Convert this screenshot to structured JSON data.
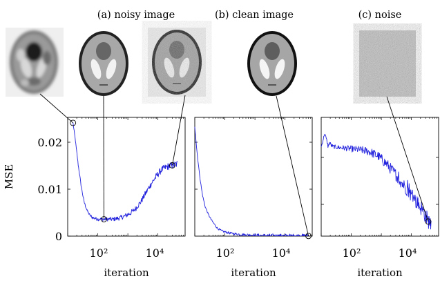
{
  "panel_titles": [
    "(a) noisy image",
    "(b) clean image",
    "(c) noise"
  ],
  "thumbnail_icons": [
    "blurry-phantom-icon",
    "smooth-phantom-icon",
    "noisy-phantom-icon",
    "clean-phantom-icon",
    "noise-pattern-icon"
  ],
  "colors": {
    "series": "#1f1fdd",
    "axis": "#000000",
    "marker": "#000000"
  },
  "chart_data": [
    {
      "type": "line",
      "title": "(a) noisy image",
      "xlabel": "iteration",
      "ylabel": "MSE",
      "xscale": "log",
      "xlim": [
        10,
        80000
      ],
      "ylim": [
        0,
        0.026
      ],
      "xticks": [
        {
          "value": 100,
          "label": "10²"
        },
        {
          "value": 10000,
          "label": "10⁴"
        }
      ],
      "yticks": [
        {
          "value": 0,
          "label": "0"
        },
        {
          "value": 0.01,
          "label": "0.01"
        },
        {
          "value": 0.02,
          "label": "0.02"
        }
      ],
      "series": [
        {
          "x": [
            15,
            18,
            22,
            28,
            35,
            45,
            55,
            70,
            90,
            110,
            140,
            180,
            230,
            300,
            400,
            550,
            800,
            1200,
            1800,
            2700,
            4000,
            6000,
            9000,
            13000,
            20000,
            30000,
            45000
          ],
          "y": [
            0.0248,
            0.021,
            0.016,
            0.011,
            0.0075,
            0.0055,
            0.0045,
            0.004,
            0.0038,
            0.0037,
            0.0037,
            0.0037,
            0.0037,
            0.0037,
            0.0038,
            0.004,
            0.0044,
            0.005,
            0.006,
            0.0075,
            0.0095,
            0.0115,
            0.0132,
            0.0145,
            0.0152,
            0.0155,
            0.0158
          ],
          "noise": 0.0006
        }
      ],
      "markers": [
        {
          "x": 15,
          "y": 0.0248
        },
        {
          "x": 160,
          "y": 0.0037
        },
        {
          "x": 30000,
          "y": 0.0155
        }
      ]
    },
    {
      "type": "line",
      "xlabel": "iteration",
      "xscale": "log",
      "xlim": [
        10,
        80000
      ],
      "ylim": [
        0,
        0.026
      ],
      "xticks": [
        {
          "value": 100,
          "label": "10²"
        },
        {
          "value": 10000,
          "label": "10⁴"
        }
      ],
      "series": [
        {
          "x": [
            10,
            12,
            15,
            18,
            22,
            28,
            35,
            45,
            55,
            70,
            90,
            120,
            160,
            220,
            300,
            450,
            700,
            1100,
            2000,
            4000,
            8000,
            20000,
            60000
          ],
          "y": [
            0.024,
            0.018,
            0.0125,
            0.009,
            0.0065,
            0.0048,
            0.0036,
            0.0026,
            0.0018,
            0.0013,
            0.001,
            0.0008,
            0.0006,
            0.0005,
            0.0004,
            0.0003,
            0.00025,
            0.0002,
            0.00015,
            0.0001,
            8e-05,
            5e-05,
            3e-05
          ],
          "noise": 0.00035
        }
      ],
      "markers": [
        {
          "x": 60000,
          "y": 3e-05
        }
      ]
    },
    {
      "type": "line",
      "xlabel": "iteration",
      "xscale": "log",
      "xlim": [
        10,
        80000
      ],
      "ylim": [
        0,
        0.026
      ],
      "xticks": [
        {
          "value": 100,
          "label": "10²"
        },
        {
          "value": 10000,
          "label": "10⁴"
        }
      ],
      "series": [
        {
          "x": [
            10,
            11,
            13,
            15,
            17,
            19,
            22,
            25,
            30,
            40,
            60,
            100,
            200,
            400,
            800,
            1500,
            3000,
            5000,
            8000,
            12000,
            18000,
            26000,
            35000,
            45000
          ],
          "y": [
            0.0195,
            0.0205,
            0.0225,
            0.0212,
            0.0195,
            0.0205,
            0.0198,
            0.0196,
            0.0195,
            0.0194,
            0.0193,
            0.0191,
            0.0189,
            0.0185,
            0.0175,
            0.0158,
            0.0135,
            0.0115,
            0.0098,
            0.0082,
            0.0068,
            0.0052,
            0.0035,
            0.0028
          ],
          "noise": 0.0009
        }
      ],
      "markers": [
        {
          "x": 36000,
          "y": 0.0032
        }
      ]
    }
  ]
}
